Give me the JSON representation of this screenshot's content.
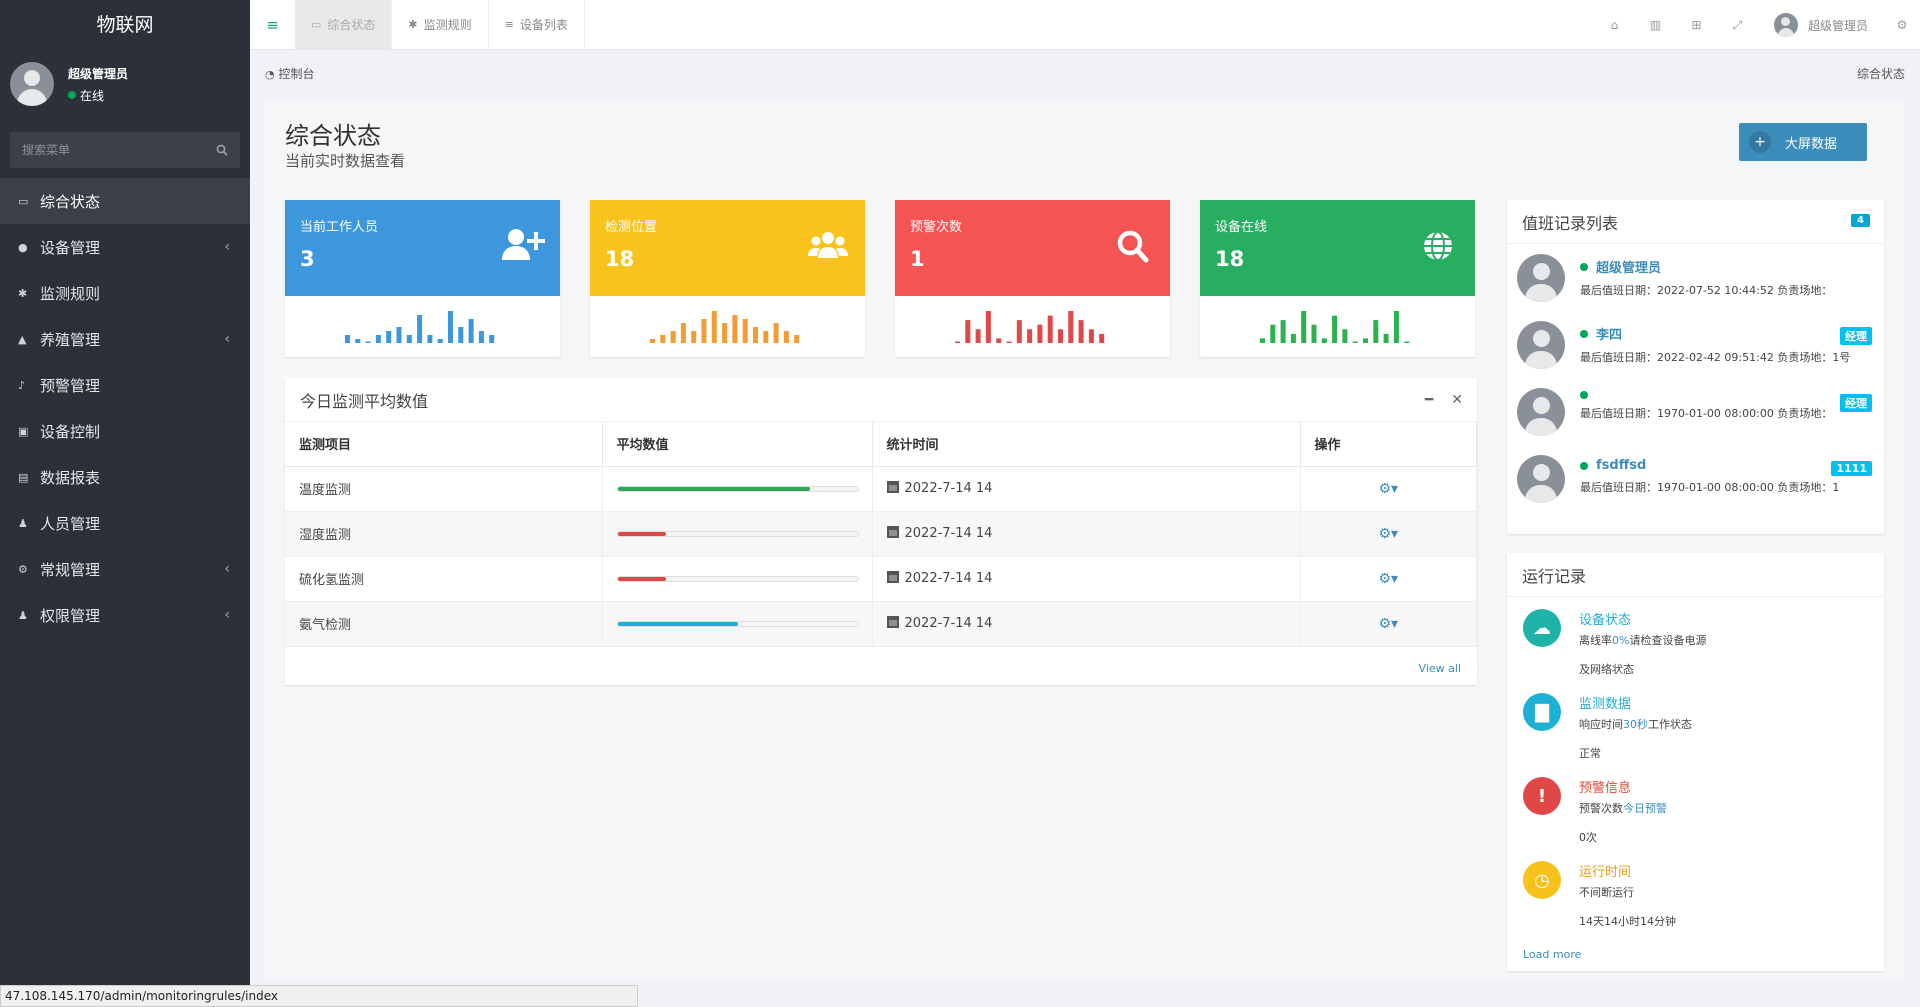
{
  "brand": "物联网",
  "user": {
    "name": "超级管理员",
    "status": "在线"
  },
  "search": {
    "placeholder": "搜索菜单"
  },
  "menu": [
    {
      "label": "综合状态",
      "icon": "monitor-icon",
      "glyph": "▭",
      "active": true,
      "has_children": false
    },
    {
      "label": "设备管理",
      "icon": "bug-icon",
      "glyph": "●",
      "has_children": true
    },
    {
      "label": "监测规则",
      "icon": "asterisk-icon",
      "glyph": "✱",
      "has_children": false
    },
    {
      "label": "养殖管理",
      "icon": "area-chart-icon",
      "glyph": "▲",
      "has_children": true
    },
    {
      "label": "预警管理",
      "icon": "bell-icon",
      "glyph": "♪",
      "has_children": false
    },
    {
      "label": "设备控制",
      "icon": "film-icon",
      "glyph": "▣",
      "has_children": false
    },
    {
      "label": "数据报表",
      "icon": "file-icon",
      "glyph": "▤",
      "has_children": false
    },
    {
      "label": "人员管理",
      "icon": "user-icon",
      "glyph": "♟",
      "has_children": false
    },
    {
      "label": "常规管理",
      "icon": "cogs-icon",
      "glyph": "⚙",
      "has_children": true
    },
    {
      "label": "权限管理",
      "icon": "group-icon",
      "glyph": "♟",
      "has_children": true
    }
  ],
  "tabs": [
    {
      "label": "综合状态",
      "glyph": "▭",
      "active": true
    },
    {
      "label": "监测规则",
      "glyph": "✱",
      "active": false
    },
    {
      "label": "设备列表",
      "glyph": "≡",
      "active": false
    }
  ],
  "topbar": {
    "user_name": "超级管理员"
  },
  "breadcrumb": {
    "left": "控制台",
    "right": "综合状态"
  },
  "page": {
    "title": "综合状态",
    "subtitle": "当前实时数据查看",
    "big_button": "大屏数据"
  },
  "stats": [
    {
      "label": "当前工作人员",
      "value": "3",
      "color": "#3c97dd",
      "spark_color": "#3c97dd",
      "icon": "user-plus-icon",
      "spark": [
        2,
        1,
        0,
        2,
        3,
        4,
        2,
        7,
        2,
        1,
        8,
        4,
        6,
        3,
        2
      ]
    },
    {
      "label": "检测位置",
      "value": "18",
      "color": "#f8c31b",
      "spark_color": "#f39c34",
      "icon": "users-icon",
      "spark": [
        1,
        2,
        3,
        5,
        3,
        6,
        8,
        5,
        7,
        6,
        4,
        3,
        5,
        3,
        2
      ]
    },
    {
      "label": "预警次数",
      "value": "1",
      "color": "#f45454",
      "spark_color": "#e04848",
      "icon": "search-icon",
      "spark": [
        0,
        5,
        3,
        7,
        1,
        0,
        5,
        3,
        4,
        6,
        3,
        7,
        5,
        3,
        2
      ]
    },
    {
      "label": "设备在线",
      "value": "18",
      "color": "#27ae60",
      "spark_color": "#2bb24c",
      "icon": "globe-icon",
      "spark": [
        1,
        4,
        5,
        2,
        7,
        4,
        1,
        6,
        3,
        0,
        1,
        5,
        2,
        7,
        0
      ]
    }
  ],
  "avg_panel": {
    "title": "今日监测平均数值",
    "columns": [
      "监测项目",
      "平均数值",
      "统计时间",
      "操作"
    ],
    "rows": [
      {
        "name": "温度监测",
        "value": 0.8,
        "color": "#2ca75a",
        "time": "2022-7-14 14"
      },
      {
        "name": "湿度监测",
        "value": 0.2,
        "color": "#e04848",
        "time": "2022-7-14 14"
      },
      {
        "name": "硫化氢监测",
        "value": 0.2,
        "color": "#e04848",
        "time": "2022-7-14 14"
      },
      {
        "name": "氨气检测",
        "value": 0.5,
        "color": "#1faed1",
        "time": "2022-7-14 14"
      }
    ],
    "view_all": "View all"
  },
  "duty_panel": {
    "title": "值班记录列表",
    "count": "4",
    "items": [
      {
        "name": "超级管理员",
        "desc": "最后值班日期：2022-07-52 10:44:52 负责场地：",
        "badge": ""
      },
      {
        "name": "李四",
        "desc": "最后值班日期：2022-02-42 09:51:42 负责场地：1号",
        "badge": "经理"
      },
      {
        "name": "",
        "desc": "最后值班日期：1970-01-00 08:00:00 负责场地：",
        "badge": "经理"
      },
      {
        "name": "fsdffsd",
        "desc": "最后值班日期：1970-01-00 08:00:00 负责场地：1",
        "badge": "1111"
      }
    ]
  },
  "run_panel": {
    "title": "运行记录",
    "items": [
      {
        "title": "设备状态",
        "title_color": "#1faed1",
        "icon_color": "#1fb3a8",
        "glyph": "☁",
        "desc_pre": "离线率",
        "desc_hl": "0%",
        "desc_post": "请检查设备电源",
        "desc2": "及网络状态"
      },
      {
        "title": "监测数据",
        "title_color": "#1faed1",
        "icon_color": "#1fb0d6",
        "glyph": "▇",
        "desc_pre": "响应时间",
        "desc_hl": "30秒",
        "desc_post": "工作状态",
        "desc2": "正常"
      },
      {
        "title": "预警信息",
        "title_color": "#dd4b39",
        "icon_color": "#e04848",
        "glyph": "!",
        "desc_pre": "预警次数",
        "desc_hl": "今日预警",
        "desc_post": "",
        "desc2": "0次"
      },
      {
        "title": "运行时间",
        "title_color": "#f39c12",
        "icon_color": "#f5c21b",
        "glyph": "◷",
        "desc_pre": "不间断运行",
        "desc_hl": "",
        "desc_post": "",
        "desc2": "14天14小时14分钟"
      }
    ],
    "load_more": "Load more"
  },
  "status_bar": "47.108.145.170/admin/monitoringrules/index"
}
